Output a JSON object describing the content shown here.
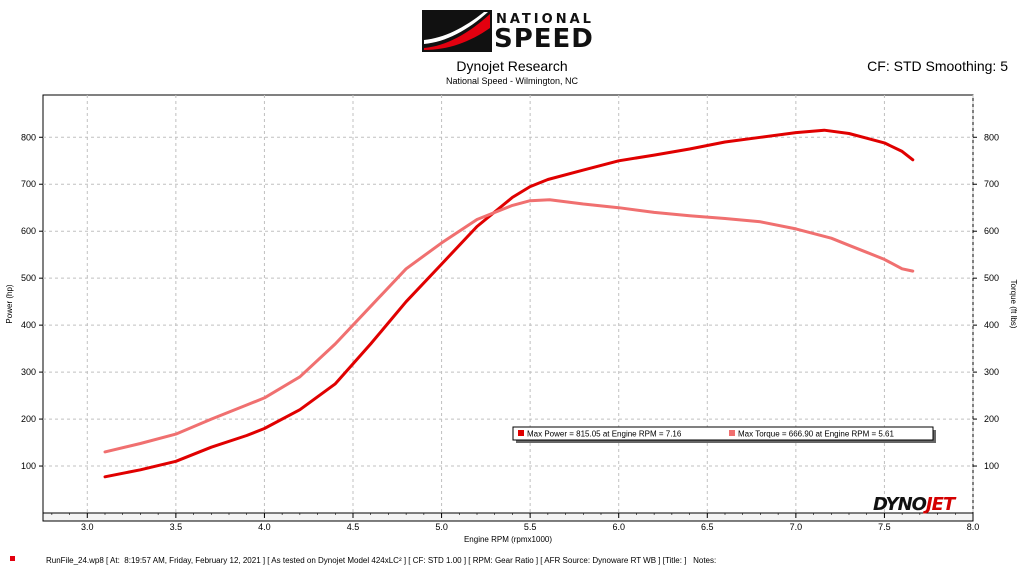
{
  "header": {
    "logo_top": "NATIONAL",
    "logo_bottom": "SPEED",
    "title": "Dynojet Research",
    "subtitle": "National Speed - Wilmington, NC",
    "cf_label": "CF: STD Smoothing: 5"
  },
  "footer": {
    "text": "RunFile_24.wp8 [ At:  8:19:57 AM, Friday, February 12, 2021 ] [ As tested on Dynojet Model 424xLC² ] [ CF: STD 1.00 ] [ RPM: Gear Ratio ] [ AFR Source: Dynoware RT WB ] [Title: ]   Notes:"
  },
  "brand": {
    "dynojet_a": "DYNO",
    "dynojet_b": "JET"
  },
  "colors": {
    "power": "#e00000",
    "torque": "#f07070",
    "grid": "#c0c0c0"
  },
  "chart_data": {
    "type": "line",
    "xlabel": "Engine RPM (rpmx1000)",
    "ylabel_left": "Power (hp)",
    "ylabel_right": "Torque (ft lbs)",
    "xlim": [
      2.75,
      8.0
    ],
    "ylim": [
      0,
      890
    ],
    "x_ticks": [
      3.0,
      3.5,
      4.0,
      4.5,
      5.0,
      5.5,
      6.0,
      6.5,
      7.0,
      7.5,
      8.0
    ],
    "x_tick_labels": [
      "3.0",
      "3.5",
      "4.0",
      "4.5",
      "5.0",
      "5.5",
      "6.0",
      "6.5",
      "7.0",
      "7.5",
      "8.0"
    ],
    "y_ticks": [
      100,
      200,
      300,
      400,
      500,
      600,
      700,
      800
    ],
    "y_tick_labels": [
      "100",
      "200",
      "300",
      "400",
      "500",
      "600",
      "700",
      "800"
    ],
    "grid": true,
    "legend_position": "lower-right",
    "legend": [
      "Max Power = 815.05 at Engine RPM = 7.16",
      "Max Torque = 666.90 at Engine RPM = 5.61"
    ],
    "series": [
      {
        "name": "Max Power = 815.05 at Engine RPM = 7.16",
        "axis": "left",
        "x": [
          3.1,
          3.3,
          3.5,
          3.7,
          3.9,
          4.0,
          4.2,
          4.4,
          4.6,
          4.8,
          5.0,
          5.2,
          5.4,
          5.5,
          5.6,
          5.8,
          6.0,
          6.2,
          6.4,
          6.6,
          6.8,
          7.0,
          7.16,
          7.3,
          7.4,
          7.5,
          7.6,
          7.66
        ],
        "values": [
          77,
          92,
          110,
          140,
          165,
          180,
          220,
          275,
          360,
          450,
          530,
          610,
          672,
          695,
          710,
          730,
          750,
          762,
          775,
          790,
          800,
          810,
          815,
          808,
          798,
          788,
          770,
          752
        ]
      },
      {
        "name": "Max Torque = 666.90 at Engine RPM = 5.61",
        "axis": "right",
        "x": [
          3.1,
          3.3,
          3.5,
          3.7,
          3.9,
          4.0,
          4.2,
          4.4,
          4.6,
          4.8,
          5.0,
          5.2,
          5.4,
          5.5,
          5.61,
          5.8,
          6.0,
          6.2,
          6.4,
          6.6,
          6.8,
          7.0,
          7.2,
          7.3,
          7.4,
          7.5,
          7.6,
          7.66
        ],
        "values": [
          130,
          148,
          168,
          200,
          230,
          245,
          290,
          360,
          440,
          520,
          575,
          625,
          655,
          665,
          667,
          658,
          650,
          640,
          633,
          627,
          620,
          605,
          585,
          570,
          555,
          540,
          520,
          515
        ]
      }
    ]
  }
}
